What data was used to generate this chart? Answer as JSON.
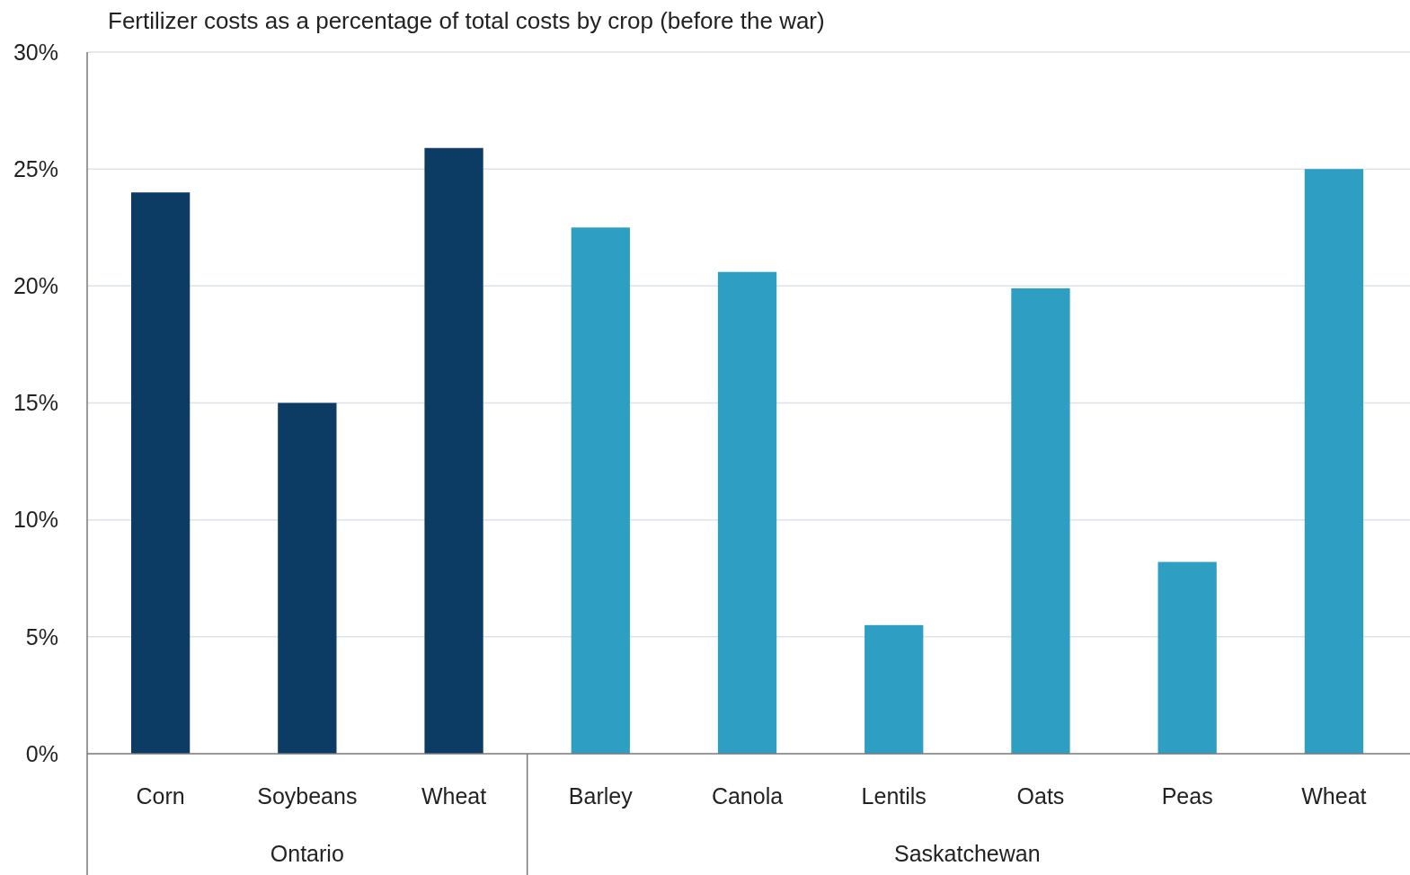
{
  "chart_data": {
    "type": "bar",
    "title": "Fertilizer costs as a percentage of total costs by crop (before the war)",
    "categories": [
      "Corn",
      "Soybeans",
      "Wheat",
      "Barley",
      "Canola",
      "Lentils",
      "Oats",
      "Peas",
      "Wheat"
    ],
    "values": [
      24,
      15,
      25.9,
      22.5,
      20.6,
      5.5,
      19.9,
      8.2,
      25
    ],
    "colors": [
      "#0c3c64",
      "#0c3c64",
      "#0c3c64",
      "#2e9fc2",
      "#2e9fc2",
      "#2e9fc2",
      "#2e9fc2",
      "#2e9fc2",
      "#2e9fc2"
    ],
    "annotations": [
      "Ontario",
      "Saskatchewan"
    ],
    "ylim": [
      0,
      30
    ],
    "yticks": [
      {
        "value": 0,
        "label": "0%"
      },
      {
        "value": 5,
        "label": "5%"
      },
      {
        "value": 10,
        "label": "10%"
      },
      {
        "value": 15,
        "label": "15%"
      },
      {
        "value": 20,
        "label": "20%"
      },
      {
        "value": 25,
        "label": "25%"
      },
      {
        "value": 30,
        "label": "30%"
      }
    ],
    "grid": "y"
  }
}
